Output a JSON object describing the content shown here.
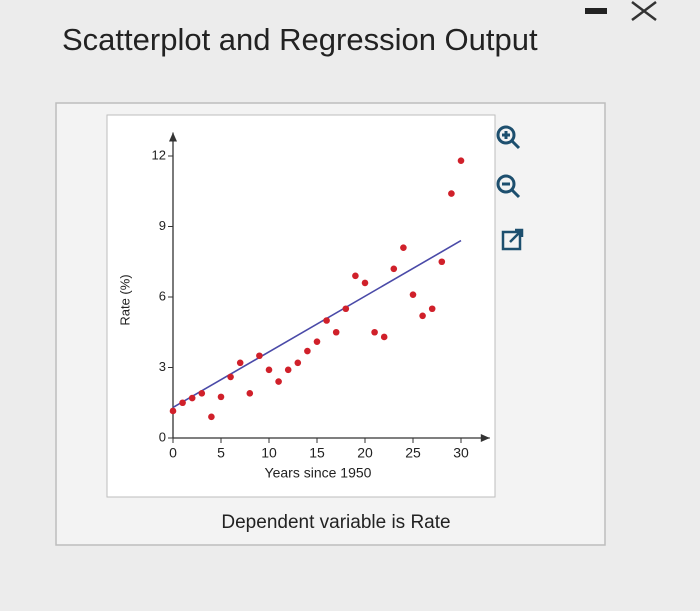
{
  "chart_data": {
    "type": "scatter",
    "title": "Scatterplot and Regression Output",
    "note": "Dependent variable is Rate",
    "x_label": "Years since 1950",
    "y_label": "Rate (%)",
    "xlim": [
      0,
      33
    ],
    "ylim": [
      0,
      13
    ],
    "xticks": [
      0,
      5,
      10,
      15,
      20,
      25,
      30
    ],
    "yticks": [
      0,
      3,
      6,
      9,
      12
    ],
    "color": "#d0202a",
    "x": [
      0,
      1,
      2,
      3,
      4,
      5,
      6,
      7,
      8,
      9,
      10,
      11,
      12,
      13,
      14,
      15,
      16,
      17,
      18,
      19,
      20,
      21,
      22,
      23,
      24,
      25,
      26,
      27,
      28,
      29,
      30
    ],
    "values": [
      1.15,
      1.5,
      1.7,
      1.9,
      0.9,
      1.75,
      2.6,
      3.2,
      1.9,
      3.5,
      2.9,
      2.4,
      2.9,
      3.2,
      3.7,
      4.1,
      5.0,
      4.5,
      5.5,
      6.9,
      6.6,
      4.5,
      4.3,
      7.2,
      8.1,
      6.1,
      5.2,
      5.5,
      7.5,
      10.4,
      11.8
    ],
    "regression": {
      "color": "#4a4aa8",
      "x": [
        0,
        30
      ],
      "values": [
        1.3,
        8.4
      ]
    }
  }
}
